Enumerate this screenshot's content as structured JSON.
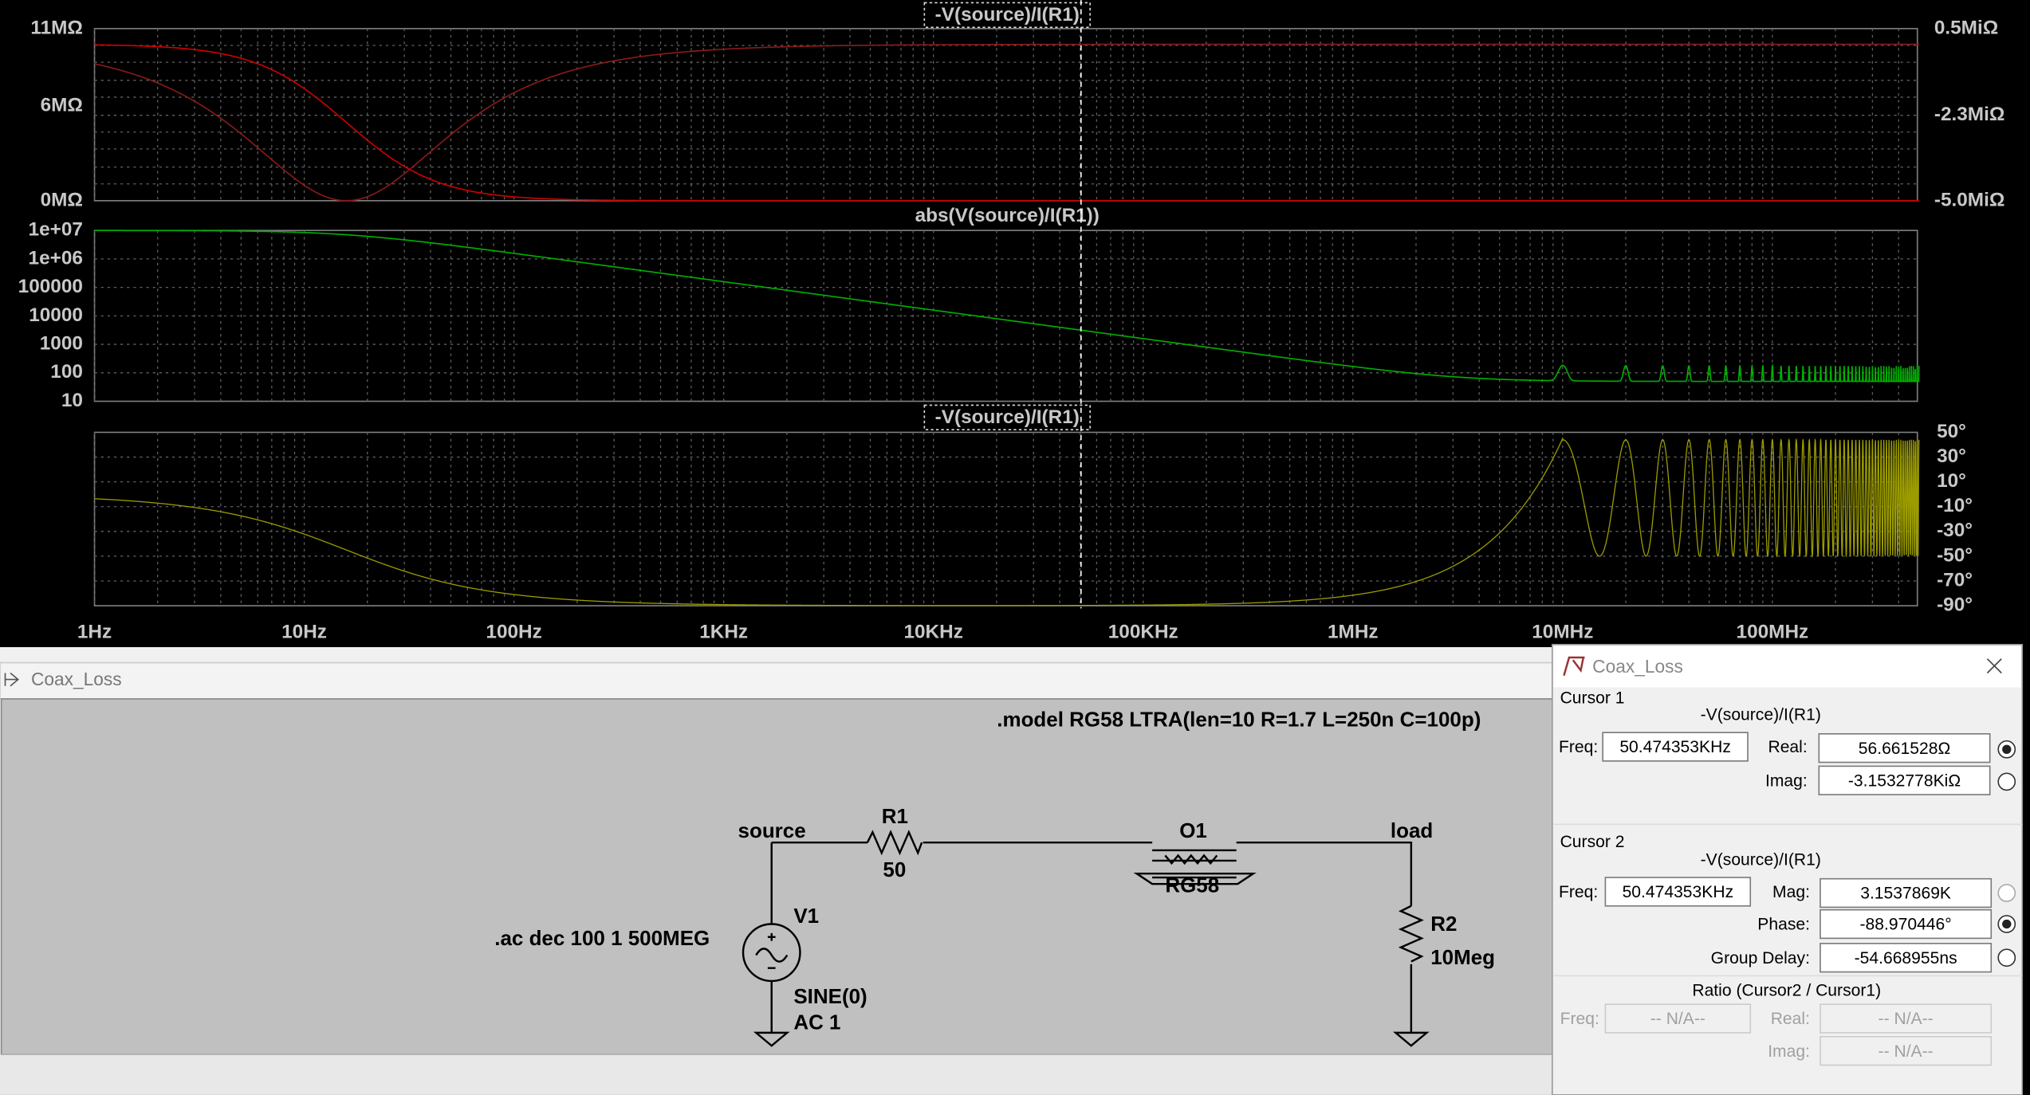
{
  "waveform": {
    "panes": [
      {
        "trace": "-V(source)/I(R1)",
        "left_ticks": [
          "11MΩ",
          "6MΩ",
          "0MΩ"
        ],
        "right_ticks": [
          "0.5MiΩ",
          "-2.3MiΩ",
          "-5.0MiΩ"
        ]
      },
      {
        "trace": "abs(V(source)/I(R1))",
        "left_ticks": [
          "1e+07",
          "1e+06",
          "100000",
          "10000",
          "1000",
          "100",
          "10"
        ]
      },
      {
        "trace": "-V(source)/I(R1)",
        "right_ticks": [
          "50°",
          "30°",
          "10°",
          "-10°",
          "-30°",
          "-50°",
          "-70°",
          "-90°"
        ]
      }
    ],
    "x_ticks": [
      "1Hz",
      "10Hz",
      "100Hz",
      "1KHz",
      "10KHz",
      "100KHz",
      "1MHz",
      "10MHz",
      "100MHz"
    ]
  },
  "schematic": {
    "title": "Coax_Loss",
    "directive_model": ".model RG58 LTRA(len=10 R=1.7 L=250n C=100p)",
    "directive_ac": ".ac dec 100 1 500MEG",
    "nets": [
      "source",
      "load"
    ],
    "R1": {
      "name": "R1",
      "value": "50"
    },
    "O1": {
      "name": "O1",
      "value": "RG58"
    },
    "V1": {
      "name": "V1",
      "value": "SINE(0)",
      "ac": "AC 1"
    },
    "R2": {
      "name": "R2",
      "value": "10Meg"
    }
  },
  "cursor_window": {
    "title": "Coax_Loss",
    "cursor1": {
      "heading": "Cursor 1",
      "trace": "-V(source)/I(R1)",
      "freq_label": "Freq:",
      "freq": "50.474353KHz",
      "real_label": "Real:",
      "real": "56.661528Ω",
      "imag_label": "Imag:",
      "imag": "-3.1532778KiΩ"
    },
    "cursor2": {
      "heading": "Cursor 2",
      "trace": "-V(source)/I(R1)",
      "freq_label": "Freq:",
      "freq": "50.474353KHz",
      "mag_label": "Mag:",
      "mag": "3.1537869K",
      "phase_label": "Phase:",
      "phase": "-88.970446°",
      "delay_label": "Group Delay:",
      "delay": "-54.668955ns"
    },
    "ratio": {
      "heading": "Ratio (Cursor2 / Cursor1)",
      "freq_label": "Freq:",
      "freq": "-- N/A--",
      "real_label": "Real:",
      "real": "-- N/A--",
      "imag_label": "Imag:",
      "imag": "-- N/A--"
    }
  }
}
